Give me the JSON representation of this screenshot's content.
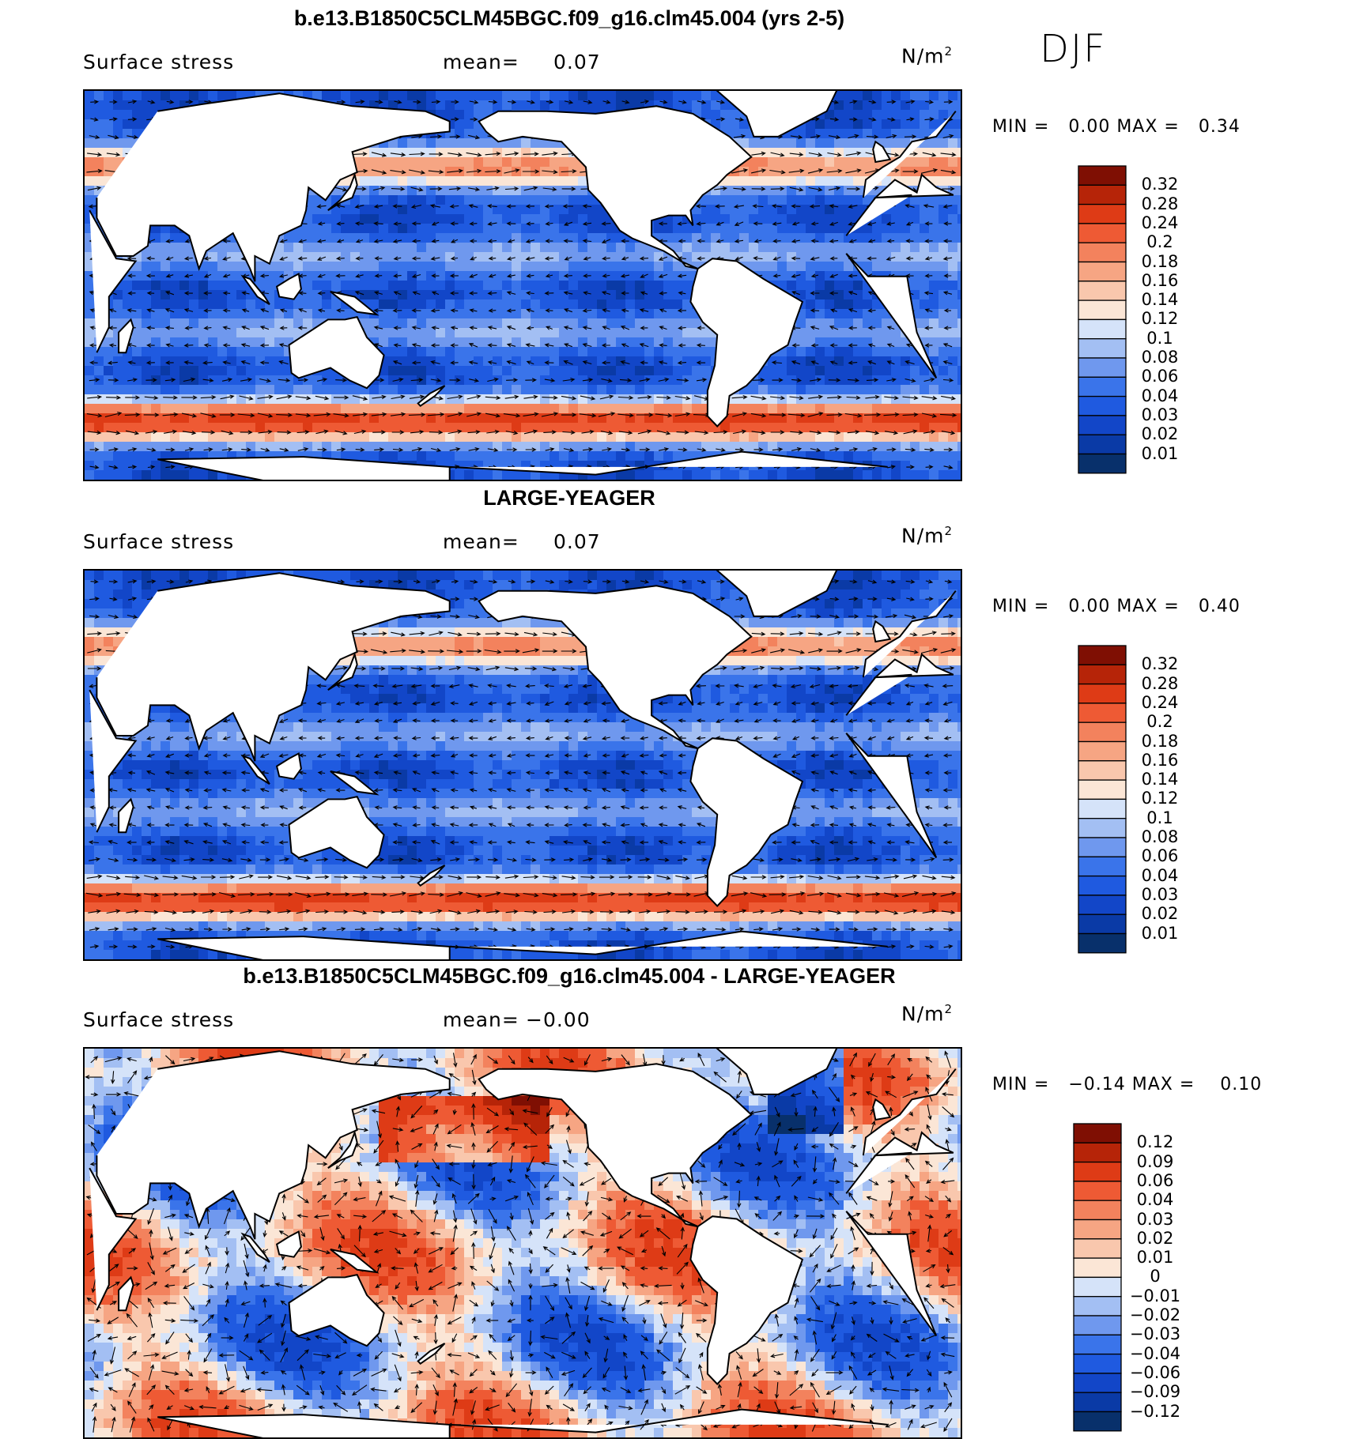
{
  "season": "DJF",
  "palette_seq": [
    "#08306b",
    "#0a3aa6",
    "#1246c8",
    "#1f5ae0",
    "#3a74ea",
    "#6f98ee",
    "#a3bff3",
    "#d5e3f9",
    "#fbe6d6",
    "#f9c7ad",
    "#f6a583",
    "#f3825d",
    "#ee5a34",
    "#de3b16",
    "#b62408",
    "#7f0f03"
  ],
  "palette_div": [
    "#08306b",
    "#0a3aa6",
    "#1246c8",
    "#1f5ae0",
    "#3a74ea",
    "#6f98ee",
    "#a3bff3",
    "#d5e3f9",
    "#fbe6d6",
    "#f9c7ad",
    "#f6a583",
    "#f3825d",
    "#ee5a34",
    "#de3b16",
    "#b62408",
    "#7f0f03"
  ],
  "panels": [
    {
      "title": "b.e13.B1850C5CLM45BGC.f09_g16.clm45.004 (yrs 2-5)",
      "variable": "Surface stress",
      "mean_label": "mean=",
      "mean_value": "0.07",
      "units": "N/m",
      "units_sup": "2",
      "min_label": "MIN =",
      "min_value": "0.00",
      "max_label": "MAX =",
      "max_value": "0.34",
      "legend_ticks": [
        "0.32",
        "0.28",
        "0.24",
        "0.2",
        "0.18",
        "0.16",
        "0.14",
        "0.12",
        "0.1",
        "0.08",
        "0.06",
        "0.04",
        "0.03",
        "0.02",
        "0.01"
      ],
      "kind": "seq",
      "seed": 3
    },
    {
      "title": "LARGE-YEAGER",
      "variable": "Surface stress",
      "mean_label": "mean=",
      "mean_value": "0.07",
      "units": "N/m",
      "units_sup": "2",
      "min_label": "MIN =",
      "min_value": "0.00",
      "max_label": "MAX =",
      "max_value": "0.40",
      "legend_ticks": [
        "0.32",
        "0.28",
        "0.24",
        "0.2",
        "0.18",
        "0.16",
        "0.14",
        "0.12",
        "0.1",
        "0.08",
        "0.06",
        "0.04",
        "0.03",
        "0.02",
        "0.01"
      ],
      "kind": "seq",
      "seed": 7
    },
    {
      "title": "b.e13.B1850C5CLM45BGC.f09_g16.clm45.004 - LARGE-YEAGER",
      "variable": "Surface stress",
      "mean_label": "mean=",
      "mean_value": "−0.00",
      "units": "N/m",
      "units_sup": "2",
      "min_label": "MIN =",
      "min_value": "−0.14",
      "max_label": "MAX =",
      "max_value": "0.10",
      "legend_ticks": [
        "0.12",
        "0.09",
        "0.06",
        "0.04",
        "0.03",
        "0.02",
        "0.01",
        "0",
        "−0.01",
        "−0.02",
        "−0.03",
        "−0.04",
        "−0.06",
        "−0.09",
        "−0.12"
      ],
      "kind": "div",
      "seed": 11
    }
  ]
}
